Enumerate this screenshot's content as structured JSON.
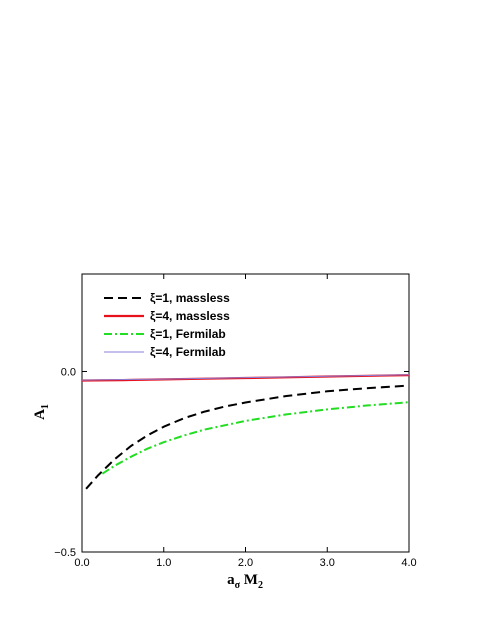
{
  "chart_data": {
    "type": "line",
    "xlabel": "a",
    "xlabel_sub": "σ",
    "xlabel_rest": " M",
    "xlabel_rest_sub": "2",
    "ylabel": "A",
    "ylabel_sub": "1",
    "xlim": [
      0.0,
      4.0
    ],
    "ylim": [
      -0.5,
      0.27
    ],
    "xticks": [
      0.0,
      1.0,
      2.0,
      3.0,
      4.0
    ],
    "xtick_labels": [
      "0.0",
      "1.0",
      "2.0",
      "3.0",
      "4.0"
    ],
    "yticks": [
      -0.5,
      0.0
    ],
    "ytick_labels": [
      "−0.5",
      "0.0"
    ],
    "legend_position": "top-left",
    "grid": false,
    "series": [
      {
        "name": "ξ=1, massless",
        "color": "#000000",
        "style": "dashed",
        "x": [
          0.05,
          0.2,
          0.4,
          0.6,
          0.8,
          1.0,
          1.25,
          1.5,
          1.75,
          2.0,
          2.5,
          3.0,
          3.5,
          4.0
        ],
        "y": [
          -0.325,
          -0.287,
          -0.243,
          -0.206,
          -0.177,
          -0.153,
          -0.129,
          -0.111,
          -0.097,
          -0.086,
          -0.068,
          -0.055,
          -0.046,
          -0.039
        ]
      },
      {
        "name": "ξ=4, massless",
        "color": "#e8101c",
        "style": "solid",
        "x": [
          0.0,
          0.5,
          1.0,
          1.5,
          2.0,
          2.5,
          3.0,
          3.5,
          4.0
        ],
        "y": [
          -0.025,
          -0.024,
          -0.022,
          -0.02,
          -0.018,
          -0.016,
          -0.014,
          -0.012,
          -0.01
        ]
      },
      {
        "name": "ξ=1, Fermilab",
        "color": "#22dd22",
        "style": "dashdot",
        "x": [
          0.25,
          0.4,
          0.6,
          0.8,
          1.0,
          1.25,
          1.5,
          2.0,
          2.5,
          3.0,
          3.5,
          4.0
        ],
        "y": [
          -0.283,
          -0.261,
          -0.236,
          -0.214,
          -0.196,
          -0.177,
          -0.161,
          -0.137,
          -0.119,
          -0.105,
          -0.094,
          -0.085
        ]
      },
      {
        "name": "ξ=4, Fermilab",
        "color": "#8a80d8",
        "style": "solid",
        "x": [
          0.0,
          1.0,
          2.0,
          3.0,
          4.0
        ],
        "y": [
          -0.024,
          -0.021,
          -0.017,
          -0.013,
          -0.009
        ]
      }
    ]
  }
}
